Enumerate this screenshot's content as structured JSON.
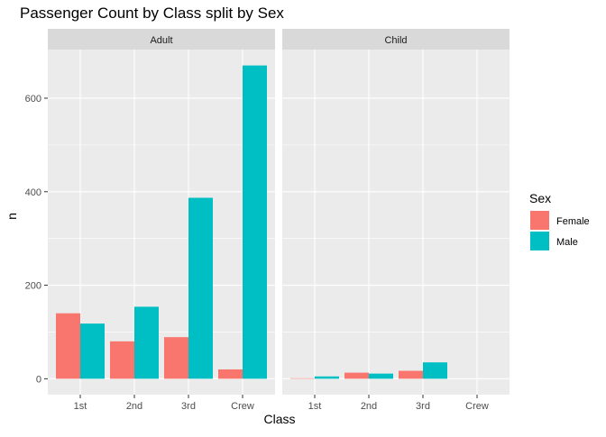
{
  "chart_data": {
    "type": "bar",
    "title": "Passenger Count by Class split by Sex",
    "xlabel": "Class",
    "ylabel": "n",
    "categories": [
      "1st",
      "2nd",
      "3rd",
      "Crew"
    ],
    "y_ticks": [
      0,
      200,
      400,
      600
    ],
    "ylim": [
      -34,
      704
    ],
    "grid": true,
    "legend": {
      "title": "Sex",
      "position": "right",
      "entries": [
        {
          "name": "Female",
          "color": "#F8766D"
        },
        {
          "name": "Male",
          "color": "#00BFC4"
        }
      ]
    },
    "facets": [
      {
        "label": "Adult",
        "series": [
          {
            "name": "Female",
            "values": [
              140,
              80,
              89,
              20
            ]
          },
          {
            "name": "Male",
            "values": [
              118,
              154,
              387,
              670
            ]
          }
        ]
      },
      {
        "label": "Child",
        "series": [
          {
            "name": "Female",
            "values": [
              1,
              13,
              17,
              0
            ]
          },
          {
            "name": "Male",
            "values": [
              5,
              11,
              35,
              0
            ]
          }
        ]
      }
    ]
  },
  "colors": {
    "panel_background": "#EBEBEB",
    "strip_background": "#D9D9D9",
    "grid": "#FFFFFF"
  }
}
